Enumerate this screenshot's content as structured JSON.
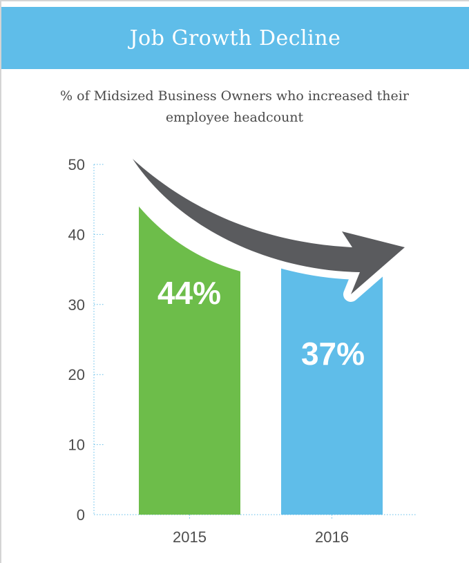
{
  "header": {
    "title": "Job Growth Decline"
  },
  "chart_data": {
    "type": "bar",
    "title": "Job Growth Decline",
    "subtitle": "% of Midsized Business Owners who increased their employee headcount",
    "categories": [
      "2015",
      "2016"
    ],
    "values": [
      44,
      37
    ],
    "value_labels": [
      "44%",
      "37%"
    ],
    "bar_colors": [
      "#6dbd4a",
      "#5fbde9"
    ],
    "ylim": [
      0,
      50
    ],
    "yticks": [
      "0",
      "10",
      "20",
      "30",
      "40",
      "50"
    ],
    "xlabel": "",
    "ylabel": "",
    "grid": false,
    "legend": "none",
    "annotation": "downward-trend-arrow",
    "arrow_color": "#5a5b5e"
  }
}
